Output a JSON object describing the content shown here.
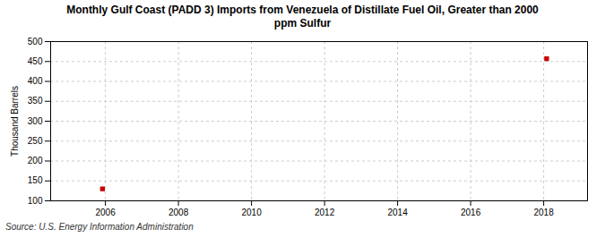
{
  "chart_data": {
    "type": "scatter",
    "title": "Monthly Gulf Coast (PADD 3) Imports from Venezuela of Distillate Fuel Oil, Greater than 2000\nppm Sulfur",
    "ylabel": "Thousand Barrels",
    "annotations": [
      "Source: U.S. Energy Information Administration"
    ],
    "x": [
      2005.92,
      2018.08
    ],
    "values": [
      130,
      457
    ],
    "color": "#cc0000",
    "marker": "square",
    "xlim": [
      2004.5,
      2019.2
    ],
    "ylim": [
      100,
      500
    ],
    "xticks": [
      2006,
      2008,
      2010,
      2012,
      2014,
      2016,
      2018
    ],
    "yticks": [
      100,
      150,
      200,
      250,
      300,
      350,
      400,
      450,
      500
    ],
    "grid": true
  }
}
